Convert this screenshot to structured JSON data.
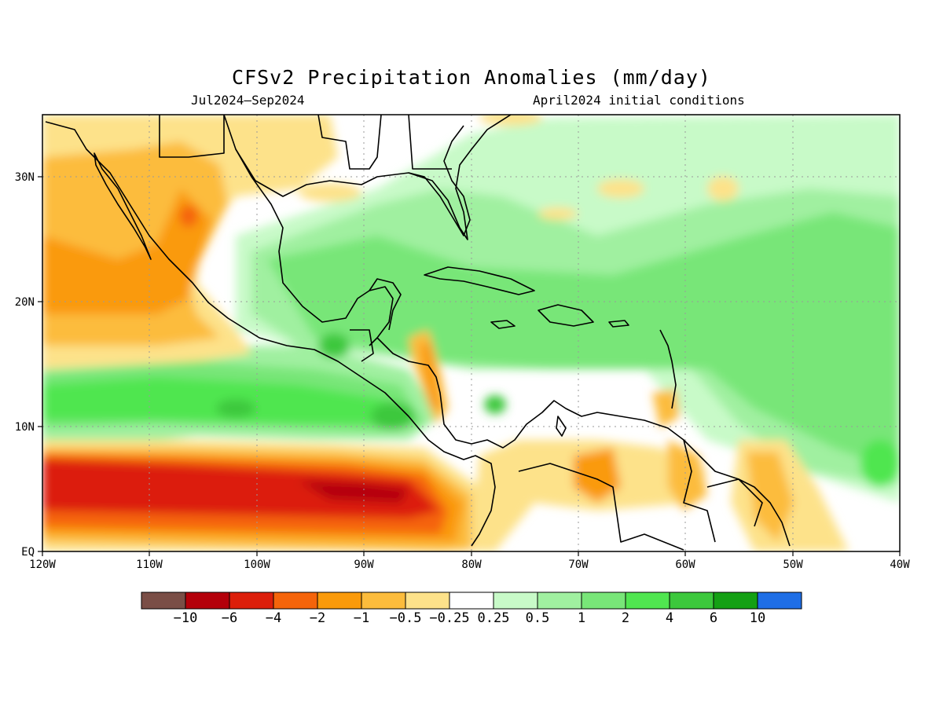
{
  "title": "CFSv2 Precipitation Anomalies (mm/day)",
  "subtitle_left": "Jul2024–Sep2024",
  "subtitle_right": "April2024 initial conditions",
  "map": {
    "lon_range": [
      -120,
      -40
    ],
    "lat_range": [
      0,
      35
    ],
    "x_ticks": [
      "120W",
      "110W",
      "100W",
      "90W",
      "80W",
      "70W",
      "60W",
      "50W",
      "40W"
    ],
    "y_ticks": [
      "EQ",
      "10N",
      "20N",
      "30N"
    ],
    "grid": "dotted"
  },
  "colorbar": {
    "colors": [
      "#7a4e46",
      "#b4000a",
      "#dc1e0a",
      "#f5640a",
      "#fa9a0a",
      "#fcbc3c",
      "#fde28a",
      "#ffffff",
      "#c8fac8",
      "#a0f0a0",
      "#78e678",
      "#50e650",
      "#3cc83c",
      "#14a014",
      "#1e6ee6"
    ],
    "labels": [
      "−10",
      "−6",
      "−4",
      "−2",
      "−1",
      "−0.5",
      "−0.25",
      "0.25",
      "0.5",
      "1",
      "2",
      "4",
      "6",
      "10"
    ]
  }
}
